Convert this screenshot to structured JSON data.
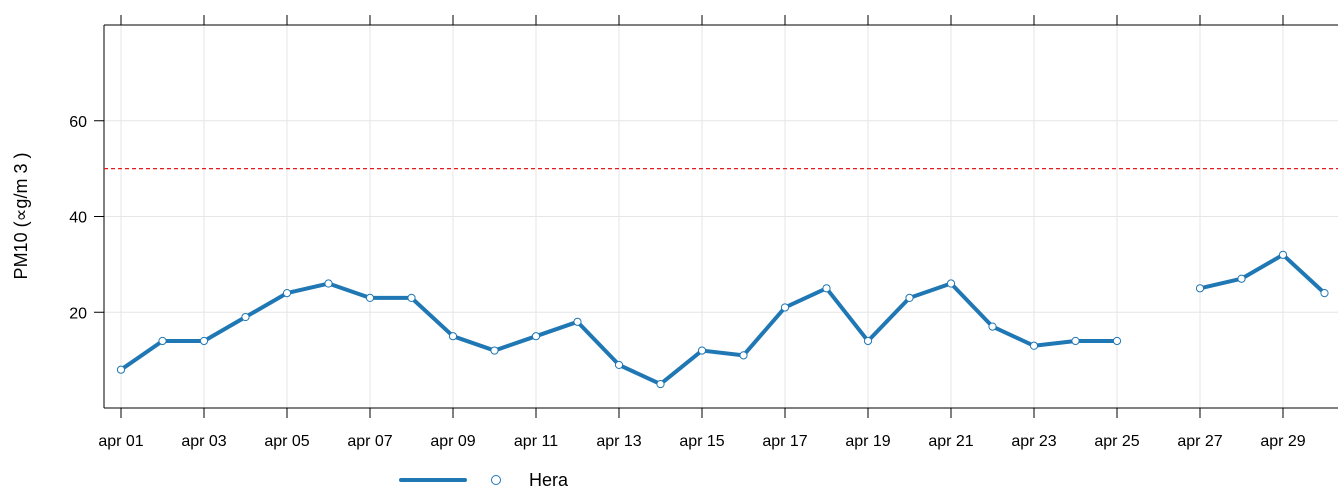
{
  "chart_data": {
    "type": "line",
    "title": "",
    "xlabel": "",
    "ylabel": "PM10 (∝g/m 3 )",
    "ylim": [
      0,
      80
    ],
    "y_ticks": [
      20,
      40,
      60
    ],
    "x_tick_labels": [
      "apr 01",
      "apr 03",
      "apr 05",
      "apr 07",
      "apr 09",
      "apr 11",
      "apr 13",
      "apr 15",
      "apr 17",
      "apr 19",
      "apr 21",
      "apr 23",
      "apr 25",
      "apr 27",
      "apr 29"
    ],
    "grid": true,
    "legend_position": "bottom",
    "reference_line": {
      "value": 50,
      "color": "#e41a1c",
      "style": "dashed"
    },
    "x": [
      "apr 01",
      "apr 02",
      "apr 03",
      "apr 04",
      "apr 05",
      "apr 06",
      "apr 07",
      "apr 08",
      "apr 09",
      "apr 10",
      "apr 11",
      "apr 12",
      "apr 13",
      "apr 14",
      "apr 15",
      "apr 16",
      "apr 17",
      "apr 18",
      "apr 19",
      "apr 20",
      "apr 21",
      "apr 22",
      "apr 23",
      "apr 24",
      "apr 25",
      "apr 26",
      "apr 27",
      "apr 28",
      "apr 29",
      "apr 30"
    ],
    "series": [
      {
        "name": "Hera",
        "color": "#1f77b4",
        "values": [
          8,
          14,
          14,
          19,
          24,
          26,
          23,
          23,
          15,
          12,
          15,
          18,
          9,
          5,
          12,
          11,
          21,
          25,
          14,
          23,
          26,
          17,
          13,
          14,
          14,
          null,
          25,
          27,
          32,
          24
        ]
      }
    ]
  }
}
